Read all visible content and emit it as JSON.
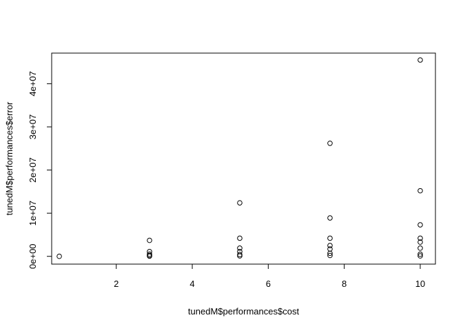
{
  "chart_data": {
    "type": "scatter",
    "xlabel": "tunedM$performances$cost",
    "ylabel": "tunedM$performances$error",
    "xlim": [
      0.3,
      10.4
    ],
    "ylim": [
      -1800000,
      47100000
    ],
    "x_ticks": [
      2,
      4,
      6,
      8,
      10
    ],
    "x_tick_labels": [
      "2",
      "4",
      "6",
      "8",
      "10"
    ],
    "y_ticks": [
      0,
      10000000,
      20000000,
      30000000,
      40000000
    ],
    "y_tick_labels": [
      "0e+00",
      "1e+07",
      "2e+07",
      "3e+07",
      "4e+07"
    ],
    "grid": false,
    "legend": "none",
    "marker": "open-circle",
    "points": [
      {
        "x": 0.5,
        "y": 0
      },
      {
        "x": 2.875,
        "y": 3700000
      },
      {
        "x": 2.875,
        "y": 1100000
      },
      {
        "x": 2.875,
        "y": 500000
      },
      {
        "x": 2.875,
        "y": 200000
      },
      {
        "x": 2.875,
        "y": 50000
      },
      {
        "x": 5.25,
        "y": 12400000
      },
      {
        "x": 5.25,
        "y": 4200000
      },
      {
        "x": 5.25,
        "y": 1900000
      },
      {
        "x": 5.25,
        "y": 1100000
      },
      {
        "x": 5.25,
        "y": 400000
      },
      {
        "x": 5.25,
        "y": 100000
      },
      {
        "x": 7.625,
        "y": 26200000
      },
      {
        "x": 7.625,
        "y": 8900000
      },
      {
        "x": 7.625,
        "y": 4200000
      },
      {
        "x": 7.625,
        "y": 2500000
      },
      {
        "x": 7.625,
        "y": 1700000
      },
      {
        "x": 7.625,
        "y": 700000
      },
      {
        "x": 7.625,
        "y": 200000
      },
      {
        "x": 10,
        "y": 45500000
      },
      {
        "x": 10,
        "y": 15200000
      },
      {
        "x": 10,
        "y": 7300000
      },
      {
        "x": 10,
        "y": 4200000
      },
      {
        "x": 10,
        "y": 3300000
      },
      {
        "x": 10,
        "y": 1900000
      },
      {
        "x": 10,
        "y": 500000
      },
      {
        "x": 10,
        "y": 100000
      }
    ]
  }
}
